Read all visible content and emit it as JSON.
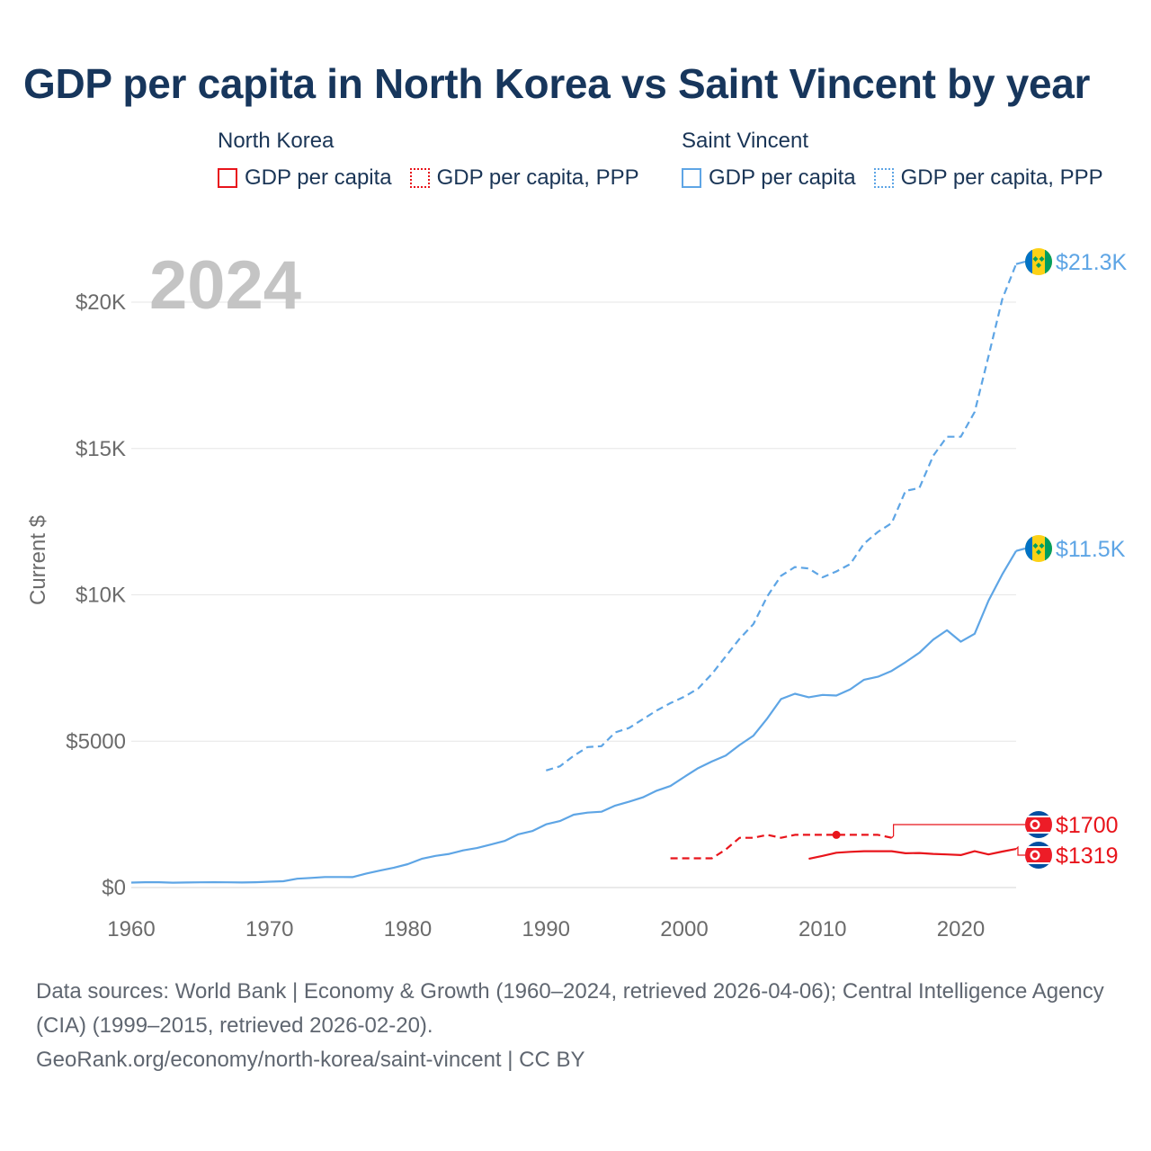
{
  "title": "GDP per capita in North Korea vs Saint Vincent by year",
  "legend": {
    "north_korea": {
      "country": "North Korea",
      "gdp_label": "GDP per capita",
      "ppp_label": "GDP per capita, PPP",
      "color": "#e8141b"
    },
    "saint_vincent": {
      "country": "Saint Vincent",
      "gdp_label": "GDP per capita",
      "ppp_label": "GDP per capita, PPP",
      "color": "#5ea5e5"
    }
  },
  "source": {
    "line1": "Data sources: World Bank | Economy & Growth (1960–2024, retrieved 2026-04-06); Central Intelligence Agency (CIA) (1999–2015, retrieved 2026-02-20).",
    "line2": "GeoRank.org/economy/north-korea/saint-vincent | CC BY"
  },
  "chart_data": {
    "type": "line",
    "title": "GDP per capita in North Korea vs Saint Vincent by year",
    "year_label": "2024",
    "ylabel": "Current $",
    "xlabel": "",
    "xlim": [
      1960,
      2024
    ],
    "ylim": [
      0,
      22000
    ],
    "x_ticks": [
      1960,
      1970,
      1980,
      1990,
      2000,
      2010,
      2020
    ],
    "y_ticks": [
      {
        "value": 0,
        "label": "$0"
      },
      {
        "value": 5000,
        "label": "$5000"
      },
      {
        "value": 10000,
        "label": "$10K"
      },
      {
        "value": 15000,
        "label": "$15K"
      },
      {
        "value": 20000,
        "label": "$20K"
      }
    ],
    "grid": true,
    "series": [
      {
        "name": "Saint Vincent GDP per capita",
        "country": "saint_vincent",
        "style": "solid",
        "color": "#5ea5e5",
        "end_label": "$11.5K",
        "end_value": 11500,
        "points": [
          [
            1960,
            170
          ],
          [
            1961,
            180
          ],
          [
            1962,
            180
          ],
          [
            1963,
            165
          ],
          [
            1964,
            172
          ],
          [
            1965,
            178
          ],
          [
            1966,
            182
          ],
          [
            1967,
            178
          ],
          [
            1968,
            172
          ],
          [
            1969,
            182
          ],
          [
            1970,
            200
          ],
          [
            1971,
            215
          ],
          [
            1972,
            300
          ],
          [
            1973,
            330
          ],
          [
            1974,
            360
          ],
          [
            1975,
            360
          ],
          [
            1976,
            355
          ],
          [
            1977,
            480
          ],
          [
            1978,
            580
          ],
          [
            1979,
            680
          ],
          [
            1980,
            800
          ],
          [
            1981,
            980
          ],
          [
            1982,
            1080
          ],
          [
            1983,
            1150
          ],
          [
            1984,
            1270
          ],
          [
            1985,
            1350
          ],
          [
            1986,
            1470
          ],
          [
            1987,
            1590
          ],
          [
            1988,
            1820
          ],
          [
            1989,
            1930
          ],
          [
            1990,
            2160
          ],
          [
            1991,
            2270
          ],
          [
            1992,
            2490
          ],
          [
            1993,
            2560
          ],
          [
            1994,
            2590
          ],
          [
            1995,
            2800
          ],
          [
            1996,
            2930
          ],
          [
            1997,
            3080
          ],
          [
            1998,
            3310
          ],
          [
            1999,
            3470
          ],
          [
            2000,
            3780
          ],
          [
            2001,
            4080
          ],
          [
            2002,
            4310
          ],
          [
            2003,
            4510
          ],
          [
            2004,
            4870
          ],
          [
            2005,
            5190
          ],
          [
            2006,
            5780
          ],
          [
            2007,
            6440
          ],
          [
            2008,
            6620
          ],
          [
            2009,
            6500
          ],
          [
            2010,
            6580
          ],
          [
            2011,
            6560
          ],
          [
            2012,
            6770
          ],
          [
            2013,
            7100
          ],
          [
            2014,
            7200
          ],
          [
            2015,
            7400
          ],
          [
            2016,
            7700
          ],
          [
            2017,
            8020
          ],
          [
            2018,
            8470
          ],
          [
            2019,
            8790
          ],
          [
            2020,
            8400
          ],
          [
            2021,
            8670
          ],
          [
            2022,
            9800
          ],
          [
            2023,
            10700
          ],
          [
            2024,
            11500
          ]
        ]
      },
      {
        "name": "Saint Vincent GDP per capita, PPP",
        "country": "saint_vincent",
        "style": "dashed",
        "color": "#5ea5e5",
        "end_label": "$21.3K",
        "end_value": 21300,
        "points": [
          [
            1990,
            4000
          ],
          [
            1991,
            4140
          ],
          [
            1992,
            4500
          ],
          [
            1993,
            4800
          ],
          [
            1994,
            4830
          ],
          [
            1995,
            5300
          ],
          [
            1996,
            5450
          ],
          [
            1997,
            5750
          ],
          [
            1998,
            6050
          ],
          [
            1999,
            6300
          ],
          [
            2000,
            6520
          ],
          [
            2001,
            6800
          ],
          [
            2002,
            7300
          ],
          [
            2003,
            7900
          ],
          [
            2004,
            8500
          ],
          [
            2005,
            9000
          ],
          [
            2006,
            9950
          ],
          [
            2007,
            10650
          ],
          [
            2008,
            10950
          ],
          [
            2009,
            10900
          ],
          [
            2010,
            10600
          ],
          [
            2011,
            10800
          ],
          [
            2012,
            11050
          ],
          [
            2013,
            11750
          ],
          [
            2014,
            12150
          ],
          [
            2015,
            12450
          ],
          [
            2016,
            13550
          ],
          [
            2017,
            13650
          ],
          [
            2018,
            14750
          ],
          [
            2019,
            15400
          ],
          [
            2020,
            15400
          ],
          [
            2021,
            16250
          ],
          [
            2022,
            18150
          ],
          [
            2023,
            20100
          ],
          [
            2024,
            21300
          ]
        ]
      },
      {
        "name": "North Korea GDP per capita",
        "country": "north_korea",
        "style": "solid",
        "color": "#e8141b",
        "end_label": "$1319",
        "end_value": 1319,
        "points": [
          [
            2009,
            980
          ],
          [
            2010,
            1080
          ],
          [
            2011,
            1190
          ],
          [
            2012,
            1220
          ],
          [
            2013,
            1240
          ],
          [
            2014,
            1240
          ],
          [
            2015,
            1240
          ],
          [
            2016,
            1170
          ],
          [
            2017,
            1180
          ],
          [
            2018,
            1150
          ],
          [
            2019,
            1130
          ],
          [
            2020,
            1110
          ],
          [
            2021,
            1240
          ],
          [
            2022,
            1130
          ],
          [
            2023,
            1230
          ],
          [
            2024,
            1319
          ]
        ]
      },
      {
        "name": "North Korea GDP per capita, PPP",
        "country": "north_korea",
        "style": "dashed",
        "color": "#e8141b",
        "end_label": "$1700",
        "end_value": 1700,
        "points": [
          [
            1999,
            1000
          ],
          [
            2000,
            1000
          ],
          [
            2001,
            1000
          ],
          [
            2002,
            1000
          ],
          [
            2003,
            1300
          ],
          [
            2004,
            1700
          ],
          [
            2005,
            1700
          ],
          [
            2006,
            1800
          ],
          [
            2007,
            1700
          ],
          [
            2008,
            1800
          ],
          [
            2009,
            1800
          ],
          [
            2010,
            1800
          ],
          [
            2011,
            1800
          ],
          [
            2012,
            1800
          ],
          [
            2013,
            1800
          ],
          [
            2014,
            1800
          ],
          [
            2015,
            1700
          ]
        ],
        "highlight_point": [
          2011,
          1800
        ]
      }
    ]
  }
}
